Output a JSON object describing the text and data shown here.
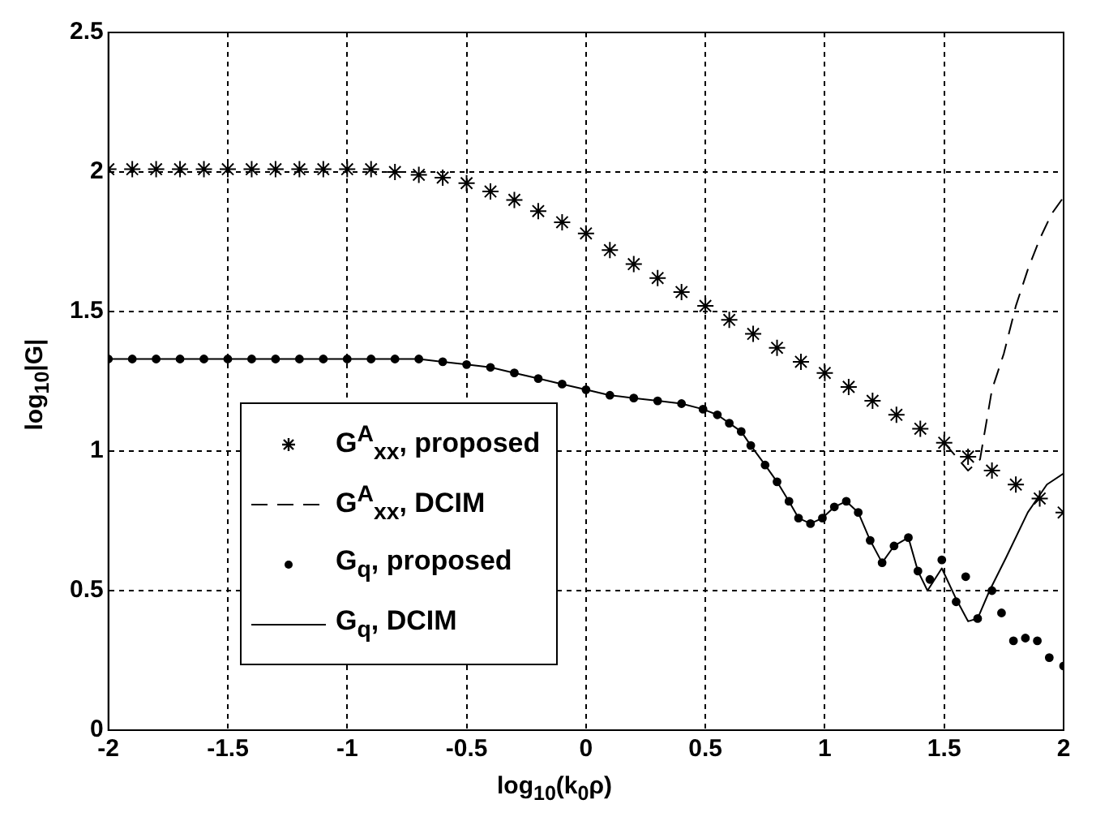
{
  "chart_data": {
    "type": "line",
    "xlabel": "log$_{10}$(k$_{0}$ρ)",
    "ylabel": "log$_{10}$|G|",
    "xlim": [
      -2,
      2
    ],
    "xticks": [
      -2,
      -1.5,
      -1,
      -0.5,
      0,
      0.5,
      1,
      1.5,
      2
    ],
    "ylim": [
      0,
      2.5
    ],
    "yticks": [
      0,
      0.5,
      1,
      1.5,
      2,
      2.5
    ],
    "grid": true,
    "legend": "bottom left",
    "series": [
      {
        "name": "G$^{A}$$_{xx}$, proposed",
        "type": "scatter",
        "marker": "cross",
        "color": "#000000",
        "x": [
          -2,
          -1.9,
          -1.8,
          -1.7,
          -1.6,
          -1.5,
          -1.4,
          -1.3,
          -1.2,
          -1.1,
          -1,
          -0.9,
          -0.8,
          -0.7,
          -0.6,
          -0.5,
          -0.4,
          -0.3,
          -0.2,
          -0.1,
          0,
          0.1,
          0.2,
          0.3,
          0.4,
          0.5,
          0.6,
          0.7,
          0.8,
          0.9,
          1,
          1.1,
          1.2,
          1.3,
          1.4,
          1.5,
          1.6,
          1.7,
          1.8,
          1.9,
          2
        ],
        "values": [
          2.01,
          2.01,
          2.01,
          2.01,
          2.01,
          2.01,
          2.01,
          2.01,
          2.01,
          2.01,
          2.01,
          2.01,
          2.0,
          1.99,
          1.98,
          1.96,
          1.93,
          1.9,
          1.86,
          1.82,
          1.78,
          1.72,
          1.67,
          1.62,
          1.57,
          1.52,
          1.47,
          1.42,
          1.37,
          1.32,
          1.28,
          1.23,
          1.18,
          1.13,
          1.08,
          1.03,
          0.98,
          0.93,
          0.88,
          0.83,
          0.78
        ]
      },
      {
        "name": "G$^{A}$$_{xx}$, DCIM",
        "line_style": "dashed",
        "marker": "none",
        "color": "#000000",
        "x": [
          1.5,
          1.55,
          1.6,
          1.65,
          1.7,
          1.75,
          1.8,
          1.85,
          1.9,
          1.95,
          2
        ],
        "values": [
          1.03,
          0.98,
          0.93,
          0.97,
          1.22,
          1.35,
          1.52,
          1.65,
          1.76,
          1.85,
          1.91
        ]
      },
      {
        "name": "G$_{q}$, proposed",
        "type": "scatter",
        "marker": "circle",
        "color": "#000000",
        "x": [
          -2,
          -1.9,
          -1.8,
          -1.7,
          -1.6,
          -1.5,
          -1.4,
          -1.3,
          -1.2,
          -1.1,
          -1,
          -0.9,
          -0.8,
          -0.7,
          -0.6,
          -0.5,
          -0.4,
          -0.3,
          -0.2,
          -0.1,
          0,
          0.1,
          0.2,
          0.3,
          0.4,
          0.49,
          0.55,
          0.6,
          0.65,
          0.69,
          0.75,
          0.8,
          0.85,
          0.89,
          0.94,
          0.99,
          1.04,
          1.09,
          1.14,
          1.19,
          1.24,
          1.29,
          1.35,
          1.39,
          1.44,
          1.49,
          1.55,
          1.59,
          1.64,
          1.7,
          1.74,
          1.79,
          1.84,
          1.89,
          1.94,
          2
        ],
        "values": [
          1.33,
          1.33,
          1.33,
          1.33,
          1.33,
          1.33,
          1.33,
          1.33,
          1.33,
          1.33,
          1.33,
          1.33,
          1.33,
          1.33,
          1.32,
          1.31,
          1.3,
          1.28,
          1.26,
          1.24,
          1.22,
          1.2,
          1.19,
          1.18,
          1.17,
          1.15,
          1.13,
          1.1,
          1.07,
          1.02,
          0.95,
          0.89,
          0.82,
          0.76,
          0.74,
          0.76,
          0.8,
          0.82,
          0.78,
          0.68,
          0.6,
          0.66,
          0.69,
          0.57,
          0.54,
          0.61,
          0.46,
          0.55,
          0.4,
          0.5,
          0.42,
          0.32,
          0.33,
          0.32,
          0.26,
          0.23
        ]
      },
      {
        "name": "G$_{q}$, DCIM",
        "line_style": "solid",
        "marker": "none",
        "color": "#000000",
        "x": [
          -2,
          -1.9,
          -1.8,
          -1.7,
          -1.6,
          -1.5,
          -1.4,
          -1.3,
          -1.2,
          -1.1,
          -1,
          -0.9,
          -0.8,
          -0.7,
          -0.6,
          -0.5,
          -0.4,
          -0.3,
          -0.2,
          -0.1,
          0,
          0.1,
          0.2,
          0.3,
          0.4,
          0.49,
          0.55,
          0.6,
          0.65,
          0.69,
          0.75,
          0.8,
          0.85,
          0.89,
          0.94,
          0.99,
          1.04,
          1.09,
          1.14,
          1.19,
          1.24,
          1.29,
          1.35,
          1.39,
          1.43,
          1.49,
          1.55,
          1.6,
          1.64,
          1.69,
          1.76,
          1.85,
          1.93,
          2
        ],
        "values": [
          1.33,
          1.33,
          1.33,
          1.33,
          1.33,
          1.33,
          1.33,
          1.33,
          1.33,
          1.33,
          1.33,
          1.33,
          1.33,
          1.33,
          1.32,
          1.31,
          1.3,
          1.28,
          1.26,
          1.24,
          1.22,
          1.2,
          1.19,
          1.18,
          1.17,
          1.15,
          1.13,
          1.1,
          1.07,
          1.02,
          0.95,
          0.89,
          0.82,
          0.76,
          0.74,
          0.76,
          0.8,
          0.82,
          0.78,
          0.68,
          0.6,
          0.66,
          0.69,
          0.57,
          0.5,
          0.58,
          0.47,
          0.39,
          0.4,
          0.5,
          0.62,
          0.78,
          0.88,
          0.92
        ]
      }
    ]
  }
}
